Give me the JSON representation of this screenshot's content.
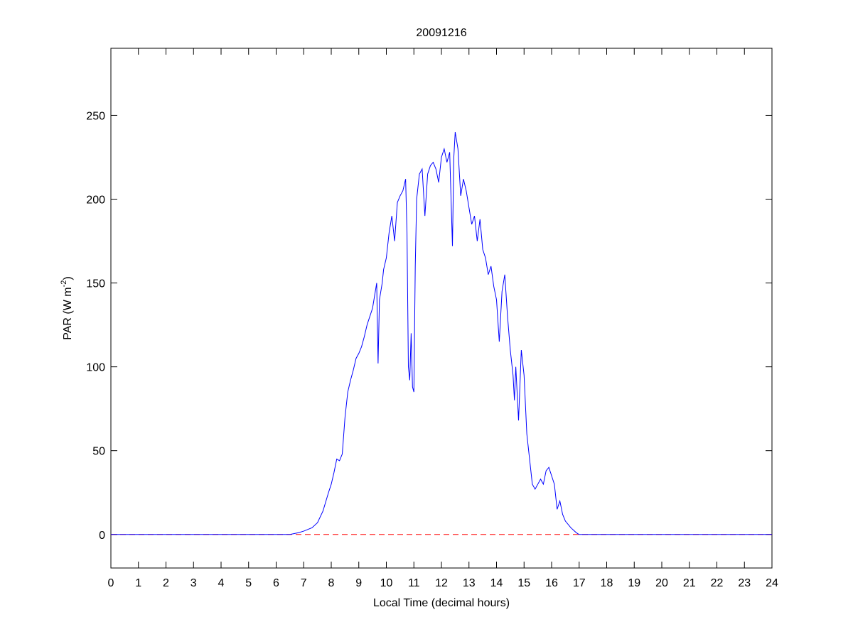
{
  "chart_data": {
    "type": "line",
    "title": "20091216",
    "xlabel": "Local Time (decimal hours)",
    "ylabel": [
      "PAR (W m",
      "-2",
      ")"
    ],
    "x": [
      0,
      6.5,
      6.8,
      7.0,
      7.3,
      7.5,
      7.7,
      7.9,
      8.0,
      8.1,
      8.2,
      8.3,
      8.4,
      8.5,
      8.6,
      8.7,
      8.8,
      8.9,
      9.0,
      9.1,
      9.2,
      9.3,
      9.4,
      9.5,
      9.6,
      9.65,
      9.7,
      9.75,
      9.85,
      9.9,
      10.0,
      10.1,
      10.2,
      10.3,
      10.4,
      10.5,
      10.6,
      10.7,
      10.75,
      10.8,
      10.85,
      10.9,
      10.95,
      11.0,
      11.05,
      11.1,
      11.2,
      11.3,
      11.4,
      11.5,
      11.6,
      11.7,
      11.8,
      11.9,
      12.0,
      12.1,
      12.2,
      12.3,
      12.4,
      12.45,
      12.5,
      12.6,
      12.7,
      12.8,
      12.9,
      13.0,
      13.1,
      13.2,
      13.3,
      13.4,
      13.5,
      13.6,
      13.7,
      13.8,
      13.9,
      14.0,
      14.1,
      14.2,
      14.3,
      14.4,
      14.5,
      14.6,
      14.65,
      14.7,
      14.8,
      14.9,
      15.0,
      15.1,
      15.2,
      15.3,
      15.4,
      15.5,
      15.6,
      15.7,
      15.8,
      15.9,
      16.0,
      16.1,
      16.2,
      16.3,
      16.4,
      16.5,
      16.7,
      16.9,
      17.0,
      17.5,
      24
    ],
    "series": [
      {
        "name": "PAR",
        "color": "#0000ff",
        "values": [
          0,
          0,
          1,
          2,
          4,
          7,
          14,
          25,
          30,
          37,
          45,
          44,
          48,
          70,
          85,
          92,
          98,
          105,
          108,
          112,
          118,
          125,
          130,
          135,
          145,
          150,
          102,
          140,
          150,
          158,
          165,
          180,
          190,
          175,
          198,
          202,
          205,
          212,
          180,
          100,
          92,
          120,
          88,
          85,
          160,
          200,
          215,
          218,
          190,
          215,
          220,
          222,
          218,
          210,
          225,
          230,
          222,
          228,
          172,
          225,
          240,
          230,
          202,
          212,
          205,
          195,
          185,
          190,
          175,
          188,
          170,
          165,
          155,
          160,
          148,
          140,
          115,
          145,
          155,
          130,
          110,
          95,
          80,
          100,
          68,
          110,
          95,
          60,
          45,
          30,
          27,
          30,
          33,
          30,
          38,
          40,
          35,
          30,
          15,
          20,
          12,
          8,
          4,
          1,
          0,
          0,
          0
        ]
      }
    ],
    "hlines": [
      {
        "value": 0,
        "color": "#ff0000",
        "style": "dashed"
      }
    ],
    "xlim": [
      0,
      24
    ],
    "xticks": [
      0,
      1,
      2,
      3,
      4,
      5,
      6,
      7,
      8,
      9,
      10,
      11,
      12,
      13,
      14,
      15,
      16,
      17,
      18,
      19,
      20,
      21,
      22,
      23,
      24
    ],
    "ylim": [
      -20,
      290
    ],
    "yticks": [
      0,
      50,
      100,
      150,
      200,
      250
    ]
  }
}
